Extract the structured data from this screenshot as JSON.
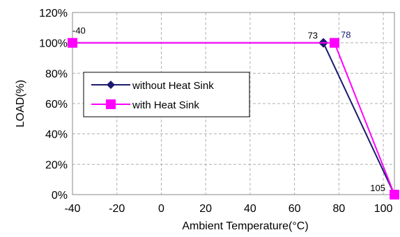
{
  "chart_data": {
    "type": "line",
    "title": "",
    "xlabel": "Ambient Temperature",
    "xlabel_unit": "(°C)",
    "ylabel": "LOAD(%)",
    "xlim": [
      -40,
      105
    ],
    "ylim": [
      0,
      120
    ],
    "x_ticks": [
      "-40",
      "-20",
      "0",
      "20",
      "40",
      "60",
      "80",
      "100"
    ],
    "y_ticks": [
      "0%",
      "20%",
      "40%",
      "60%",
      "80%",
      "100%",
      "120%"
    ],
    "grid": true,
    "legend_position": "center-left",
    "series": [
      {
        "name": "without Heat Sink",
        "color": "#1a1a6e",
        "marker": "diamond",
        "x": [
          -40,
          73,
          105
        ],
        "y": [
          100,
          100,
          0
        ]
      },
      {
        "name": "with Heat Sink",
        "color": "#ff00ff",
        "marker": "square",
        "x": [
          -40,
          78,
          105
        ],
        "y": [
          100,
          100,
          0
        ]
      }
    ],
    "annotations": [
      {
        "text": "-40",
        "x": -40,
        "y": 100,
        "color": "#000000"
      },
      {
        "text": "73",
        "x": 73,
        "y": 100,
        "color": "#000000"
      },
      {
        "text": "78",
        "x": 78,
        "y": 100,
        "color": "#1a1a6e"
      },
      {
        "text": "105",
        "x": 105,
        "y": 0,
        "color": "#000000"
      }
    ]
  }
}
